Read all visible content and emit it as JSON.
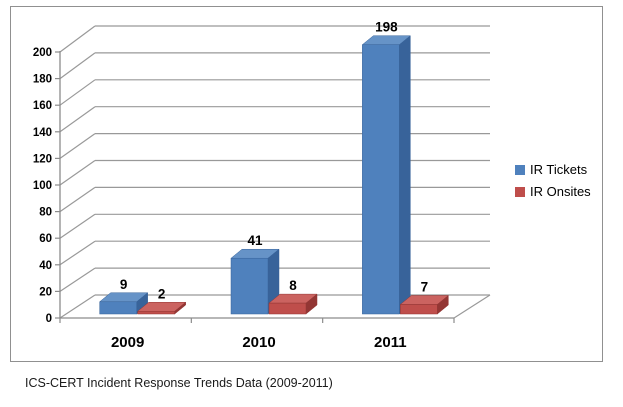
{
  "chart": {
    "caption": "ICS-CERT Incident Response Trends Data (2009-2011)",
    "frame_border_color": "#909090",
    "gridline_color": "#999999",
    "axis_color": "#8c8c8c",
    "background_color": "#ffffff"
  },
  "chart_data": {
    "type": "bar",
    "subtype": "3d-clustered-column",
    "title": "",
    "xlabel": "",
    "ylabel": "",
    "categories": [
      "2009",
      "2010",
      "2011"
    ],
    "series": [
      {
        "name": "IR Tickets",
        "values": [
          9,
          41,
          198
        ],
        "color": "#4f81bd",
        "color_top": "#6693c7",
        "color_side": "#38639a"
      },
      {
        "name": "IR Onsites",
        "values": [
          2,
          8,
          7
        ],
        "color": "#bf4e4b",
        "color_top": "#cb6360",
        "color_side": "#933634"
      }
    ],
    "ylim": [
      0,
      200
    ],
    "ytick_step": 20,
    "ytick_labels": [
      "0",
      "20",
      "40",
      "60",
      "80",
      "100",
      "120",
      "140",
      "160",
      "180",
      "200"
    ],
    "grid": true,
    "legend_position": "right",
    "data_labels": true,
    "caption": "ICS-CERT Incident Response Trends Data (2009-2011)"
  }
}
